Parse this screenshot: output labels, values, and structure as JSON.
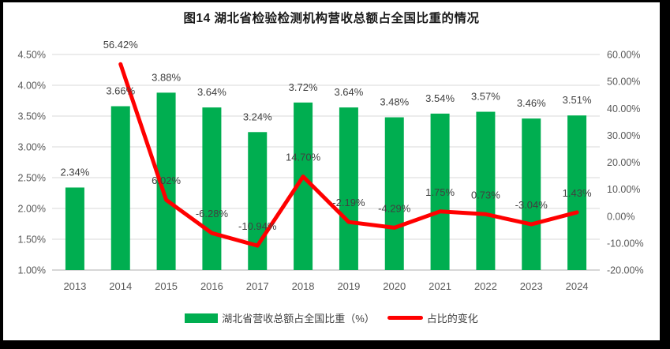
{
  "title": "图14 湖北省检验检测机构营收总额占全国比重的情况",
  "chart_data": {
    "type": "combo-bar-line",
    "title": "图14 湖北省检验检测机构营收总额占全国比重的情况",
    "categories": [
      "2013",
      "2014",
      "2015",
      "2016",
      "2017",
      "2018",
      "2019",
      "2020",
      "2021",
      "2022",
      "2023",
      "2024"
    ],
    "series": [
      {
        "name": "湖北省营收总额占全国比重（%）",
        "type": "bar",
        "axis": "left",
        "color": "#00AE50",
        "values": [
          2.34,
          3.66,
          3.88,
          3.64,
          3.24,
          3.72,
          3.64,
          3.48,
          3.54,
          3.57,
          3.46,
          3.51
        ],
        "labels": [
          "2.34%",
          "3.66%",
          "3.88%",
          "3.64%",
          "3.24%",
          "3.72%",
          "3.64%",
          "3.48%",
          "3.54%",
          "3.57%",
          "3.46%",
          "3.51%"
        ]
      },
      {
        "name": "占比的变化",
        "type": "line",
        "axis": "right",
        "color": "#FF0000",
        "values": [
          null,
          56.42,
          6.02,
          -6.28,
          -10.94,
          14.7,
          -2.19,
          -4.29,
          1.75,
          0.73,
          -3.04,
          1.43
        ],
        "labels": [
          null,
          "56.42%",
          "6.02%",
          "-6.28%",
          "-10.94%",
          "14.70%",
          "-2.19%",
          "-4.29%",
          "1.75%",
          "0.73%",
          "-3.04%",
          "1.43%"
        ]
      }
    ],
    "left_axis": {
      "min": 1.0,
      "max": 4.5,
      "ticks": [
        "4.50%",
        "4.00%",
        "3.50%",
        "3.00%",
        "2.50%",
        "2.00%",
        "1.50%",
        "1.00%"
      ]
    },
    "right_axis": {
      "min": -20,
      "max": 60,
      "ticks": [
        "60.00%",
        "50.00%",
        "40.00%",
        "30.00%",
        "20.00%",
        "10.00%",
        "0.00%",
        "-10.00%",
        "-20.00%"
      ]
    },
    "grid": true,
    "legend_position": "bottom",
    "colors": {
      "grid": "#D9D9D9",
      "axis": "#BFBFBF",
      "tick": "#595959",
      "label": "#404040",
      "frame": "#000000",
      "background": "#FFFFFF"
    }
  }
}
